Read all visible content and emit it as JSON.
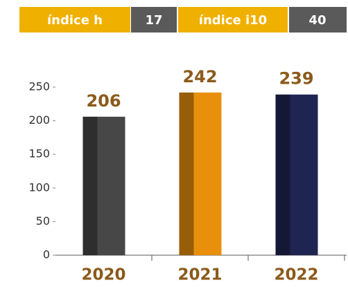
{
  "indices": [
    {
      "label": "índice h",
      "value": 17
    },
    {
      "label": "índice i10",
      "value": 40
    }
  ],
  "chart_data": {
    "type": "bar",
    "categories": [
      "2020",
      "2021",
      "2022"
    ],
    "values": [
      206,
      242,
      239
    ],
    "colors": [
      "#474747",
      "#e8900c",
      "#1f2552"
    ],
    "ylim": [
      0,
      250
    ],
    "yticks": [
      0,
      50,
      100,
      150,
      200,
      250
    ]
  }
}
